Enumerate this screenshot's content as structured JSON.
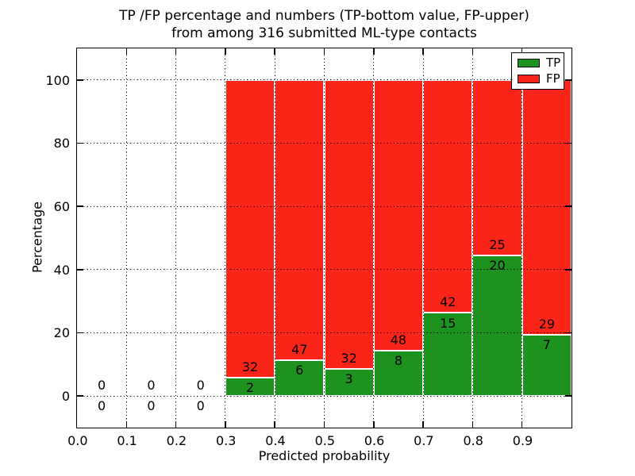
{
  "chart_data": {
    "type": "bar",
    "stacked": true,
    "title_line1": "TP /FP percentage and numbers (TP-bottom value, FP-upper)",
    "title_line2": "from among 316 submitted ML-type contacts",
    "xlabel": "Predicted probability",
    "ylabel": "Percentage",
    "xlim": [
      0.0,
      1.0
    ],
    "ylim": [
      -10,
      110
    ],
    "grid": true,
    "xtick_labels": [
      "0.0",
      "0.1",
      "0.2",
      "0.3",
      "0.4",
      "0.5",
      "0.6",
      "0.7",
      "0.8",
      "0.9"
    ],
    "ytick_values": [
      0,
      20,
      40,
      60,
      80,
      100
    ],
    "total_contacts": 316,
    "legend": {
      "position": "upper right",
      "entries": [
        {
          "label": "TP",
          "color": "#1e921e"
        },
        {
          "label": "FP",
          "color": "#fb2418"
        }
      ]
    },
    "colors": {
      "tp": "#1e921e",
      "fp": "#fb2418",
      "grid": "#000000",
      "text": "#000000",
      "background": "#ffffff"
    },
    "bins": [
      {
        "x_start": 0.0,
        "x_end": 0.1,
        "tp_count": 0,
        "fp_count": 0,
        "tp_pct": 0,
        "fp_pct": 0
      },
      {
        "x_start": 0.1,
        "x_end": 0.2,
        "tp_count": 0,
        "fp_count": 0,
        "tp_pct": 0,
        "fp_pct": 0
      },
      {
        "x_start": 0.2,
        "x_end": 0.3,
        "tp_count": 0,
        "fp_count": 0,
        "tp_pct": 0,
        "fp_pct": 0
      },
      {
        "x_start": 0.3,
        "x_end": 0.4,
        "tp_count": 2,
        "fp_count": 32,
        "tp_pct": 5.9,
        "fp_pct": 94.1
      },
      {
        "x_start": 0.4,
        "x_end": 0.5,
        "tp_count": 6,
        "fp_count": 47,
        "tp_pct": 11.3,
        "fp_pct": 88.7
      },
      {
        "x_start": 0.5,
        "x_end": 0.6,
        "tp_count": 3,
        "fp_count": 32,
        "tp_pct": 8.6,
        "fp_pct": 91.4
      },
      {
        "x_start": 0.6,
        "x_end": 0.7,
        "tp_count": 8,
        "fp_count": 48,
        "tp_pct": 14.3,
        "fp_pct": 85.7
      },
      {
        "x_start": 0.7,
        "x_end": 0.8,
        "tp_count": 15,
        "fp_count": 42,
        "tp_pct": 26.3,
        "fp_pct": 73.7
      },
      {
        "x_start": 0.8,
        "x_end": 0.9,
        "tp_count": 20,
        "fp_count": 25,
        "tp_pct": 44.4,
        "fp_pct": 55.6
      },
      {
        "x_start": 0.9,
        "x_end": 1.0,
        "tp_count": 7,
        "fp_count": 29,
        "tp_pct": 19.4,
        "fp_pct": 80.6
      }
    ]
  }
}
